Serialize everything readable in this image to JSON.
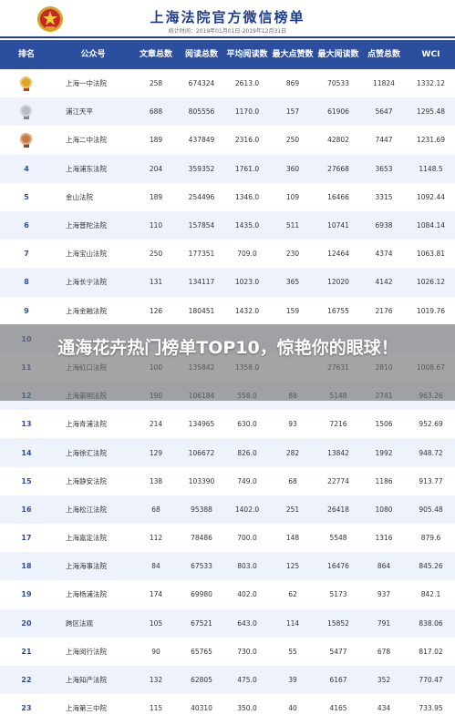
{
  "header": {
    "title": "上海法院官方微信榜单",
    "subtitle": "统计时间：2019年01月01日-2019年12月31日"
  },
  "columns": [
    "排名",
    "公众号",
    "文章总数",
    "阅读总数",
    "平均阅读数",
    "最大点赞数",
    "最大阅读数",
    "点赞总数",
    "WCI"
  ],
  "rows": [
    {
      "rank": "",
      "medal": "gold",
      "name": "上海一中法院",
      "articles": "258",
      "reads": "674324",
      "avg": "2613.0",
      "maxlike": "869",
      "maxread": "70533",
      "likes": "11824",
      "wci": "1332.12"
    },
    {
      "rank": "",
      "medal": "silver",
      "name": "浦江天平",
      "articles": "688",
      "reads": "805556",
      "avg": "1170.0",
      "maxlike": "157",
      "maxread": "61906",
      "likes": "5647",
      "wci": "1295.48"
    },
    {
      "rank": "",
      "medal": "bronze",
      "name": "上海二中法院",
      "articles": "189",
      "reads": "437849",
      "avg": "2316.0",
      "maxlike": "250",
      "maxread": "42802",
      "likes": "7447",
      "wci": "1231.69"
    },
    {
      "rank": "4",
      "name": "上海浦东法院",
      "articles": "204",
      "reads": "359352",
      "avg": "1761.0",
      "maxlike": "360",
      "maxread": "27668",
      "likes": "3653",
      "wci": "1148.5"
    },
    {
      "rank": "5",
      "name": "金山法院",
      "articles": "189",
      "reads": "254496",
      "avg": "1346.0",
      "maxlike": "109",
      "maxread": "16466",
      "likes": "3315",
      "wci": "1092.44"
    },
    {
      "rank": "6",
      "name": "上海普陀法院",
      "articles": "110",
      "reads": "157854",
      "avg": "1435.0",
      "maxlike": "511",
      "maxread": "10741",
      "likes": "6938",
      "wci": "1084.14"
    },
    {
      "rank": "7",
      "name": "上海宝山法院",
      "articles": "250",
      "reads": "177351",
      "avg": "709.0",
      "maxlike": "230",
      "maxread": "12464",
      "likes": "4374",
      "wci": "1063.81"
    },
    {
      "rank": "8",
      "name": "上海长宁法院",
      "articles": "131",
      "reads": "134117",
      "avg": "1023.0",
      "maxlike": "365",
      "maxread": "12020",
      "likes": "4142",
      "wci": "1026.12"
    },
    {
      "rank": "9",
      "name": "上海金融法院",
      "articles": "126",
      "reads": "180451",
      "avg": "1432.0",
      "maxlike": "159",
      "maxread": "16755",
      "likes": "2176",
      "wci": "1019.76"
    },
    {
      "rank": "10",
      "name": "",
      "articles": "",
      "reads": "",
      "avg": "",
      "maxlike": "",
      "maxread": "",
      "likes": "",
      "wci": ""
    },
    {
      "rank": "11",
      "name": "上海虹口法院",
      "articles": "100",
      "reads": "135842",
      "avg": "1358.0",
      "maxlike": "",
      "maxread": "27631",
      "likes": "2810",
      "wci": "1008.67"
    },
    {
      "rank": "12",
      "name": "上海崇明法院",
      "articles": "190",
      "reads": "106184",
      "avg": "558.0",
      "maxlike": "88",
      "maxread": "5148",
      "likes": "2741",
      "wci": "963.26"
    },
    {
      "rank": "13",
      "name": "上海青浦法院",
      "articles": "214",
      "reads": "134965",
      "avg": "630.0",
      "maxlike": "93",
      "maxread": "7216",
      "likes": "1506",
      "wci": "952.69"
    },
    {
      "rank": "14",
      "name": "上海徐汇法院",
      "articles": "129",
      "reads": "106672",
      "avg": "826.0",
      "maxlike": "282",
      "maxread": "13842",
      "likes": "1992",
      "wci": "948.72"
    },
    {
      "rank": "15",
      "name": "上海静安法院",
      "articles": "138",
      "reads": "103390",
      "avg": "749.0",
      "maxlike": "68",
      "maxread": "22774",
      "likes": "1186",
      "wci": "913.77"
    },
    {
      "rank": "16",
      "name": "上海松江法院",
      "articles": "68",
      "reads": "95388",
      "avg": "1402.0",
      "maxlike": "251",
      "maxread": "26418",
      "likes": "1080",
      "wci": "905.48"
    },
    {
      "rank": "17",
      "name": "上海嘉定法院",
      "articles": "112",
      "reads": "78486",
      "avg": "700.0",
      "maxlike": "148",
      "maxread": "5548",
      "likes": "1316",
      "wci": "879.6"
    },
    {
      "rank": "18",
      "name": "上海海事法院",
      "articles": "84",
      "reads": "67533",
      "avg": "803.0",
      "maxlike": "125",
      "maxread": "16476",
      "likes": "864",
      "wci": "845.26"
    },
    {
      "rank": "19",
      "name": "上海杨浦法院",
      "articles": "174",
      "reads": "69980",
      "avg": "402.0",
      "maxlike": "62",
      "maxread": "5173",
      "likes": "937",
      "wci": "842.1"
    },
    {
      "rank": "20",
      "name": "跨区法观",
      "articles": "105",
      "reads": "67521",
      "avg": "643.0",
      "maxlike": "114",
      "maxread": "15852",
      "likes": "791",
      "wci": "838.06"
    },
    {
      "rank": "21",
      "name": "上海闵行法院",
      "articles": "90",
      "reads": "65765",
      "avg": "730.0",
      "maxlike": "55",
      "maxread": "5477",
      "likes": "678",
      "wci": "817.02"
    },
    {
      "rank": "22",
      "name": "上海知产法院",
      "articles": "132",
      "reads": "62805",
      "avg": "475.0",
      "maxlike": "39",
      "maxread": "6167",
      "likes": "352",
      "wci": "770.47"
    },
    {
      "rank": "23",
      "name": "上海第三中院",
      "articles": "115",
      "reads": "40310",
      "avg": "350.0",
      "maxlike": "40",
      "maxread": "4165",
      "likes": "434",
      "wci": "733.95"
    }
  ],
  "overlay": {
    "headline": "通海花卉热门榜单TOP10，惊艳你的眼球！"
  },
  "colors": {
    "header_blue": "#2b4f9e",
    "title_blue": "#1e3f8b",
    "stripe": "#eef3fb"
  }
}
